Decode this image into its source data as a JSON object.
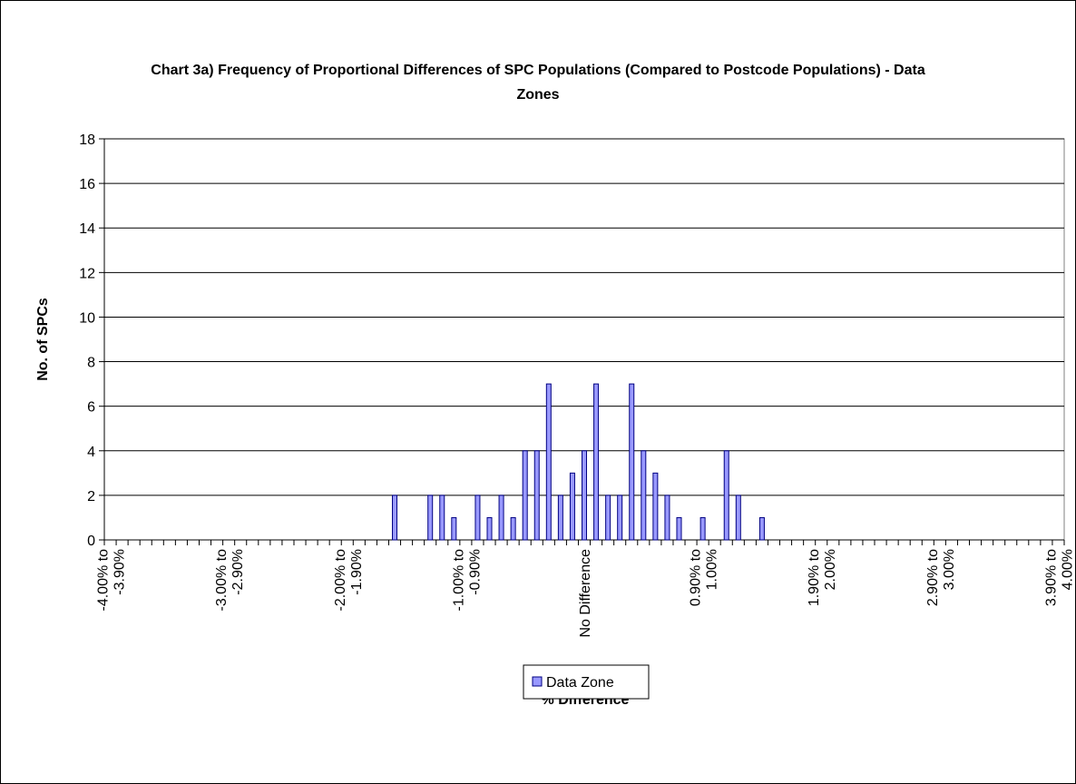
{
  "chart_data": {
    "type": "bar",
    "title": "Chart 3a) Frequency of Proportional Differences of SPC Populations (Compared to Postcode Populations) - Data Zones",
    "x_label": "% Difference",
    "y_label": "No. of SPCs",
    "categories": [
      "-4.00% to -3.90%",
      null,
      null,
      null,
      null,
      null,
      null,
      null,
      null,
      null,
      "-3.00% to -2.90%",
      null,
      null,
      null,
      null,
      null,
      null,
      null,
      null,
      null,
      "-2.00% to -1.90%",
      null,
      null,
      null,
      null,
      null,
      null,
      null,
      null,
      null,
      "-1.00% to -0.90%",
      null,
      null,
      null,
      null,
      null,
      null,
      null,
      null,
      null,
      "No Difference",
      null,
      null,
      null,
      null,
      null,
      null,
      null,
      null,
      null,
      "0.90% to 1.00%",
      null,
      null,
      null,
      null,
      null,
      null,
      null,
      null,
      null,
      "1.90% to 2.00%",
      null,
      null,
      null,
      null,
      null,
      null,
      null,
      null,
      null,
      "2.90% to 3.00%",
      null,
      null,
      null,
      null,
      null,
      null,
      null,
      null,
      null,
      "3.90% to 4.00%"
    ],
    "series": [
      {
        "name": "Data Zone",
        "color": "#9999ff",
        "values": [
          0,
          0,
          0,
          0,
          0,
          0,
          0,
          0,
          0,
          0,
          0,
          0,
          0,
          0,
          0,
          0,
          0,
          0,
          0,
          0,
          0,
          0,
          0,
          0,
          2,
          0,
          0,
          2,
          2,
          1,
          0,
          2,
          1,
          2,
          1,
          4,
          4,
          7,
          2,
          3,
          4,
          7,
          2,
          2,
          7,
          4,
          3,
          2,
          1,
          0,
          1,
          0,
          4,
          2,
          0,
          1,
          0,
          0,
          0,
          0,
          0,
          0,
          0,
          0,
          0,
          0,
          0,
          0,
          0,
          0,
          0,
          0,
          0,
          0,
          0,
          0,
          0,
          0,
          0,
          0,
          0
        ]
      }
    ],
    "ylim": [
      0,
      18
    ],
    "yticks": [
      0,
      2,
      4,
      6,
      8,
      10,
      12,
      14,
      16,
      18
    ],
    "grid": true,
    "legend": "bottom"
  }
}
